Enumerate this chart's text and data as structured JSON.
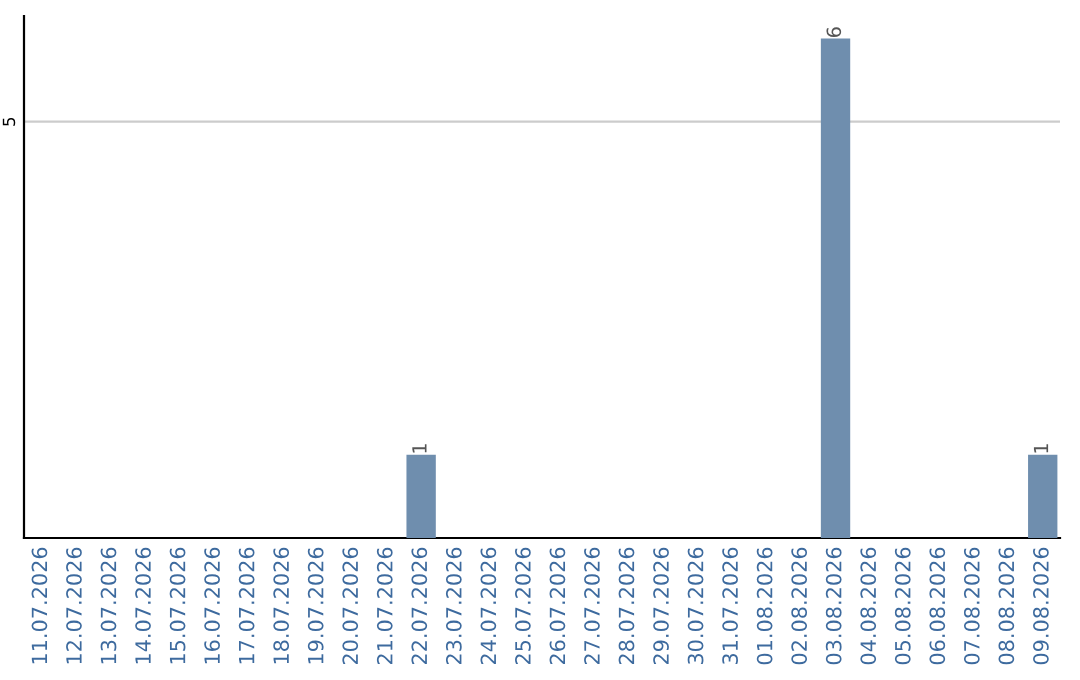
{
  "chart_data": {
    "type": "bar",
    "categories": [
      "11.07.2026",
      "12.07.2026",
      "13.07.2026",
      "14.07.2026",
      "15.07.2026",
      "16.07.2026",
      "17.07.2026",
      "18.07.2026",
      "19.07.2026",
      "20.07.2026",
      "21.07.2026",
      "22.07.2026",
      "23.07.2026",
      "24.07.2026",
      "25.07.2026",
      "26.07.2026",
      "27.07.2026",
      "28.07.2026",
      "29.07.2026",
      "30.07.2026",
      "31.07.2026",
      "01.08.2026",
      "02.08.2026",
      "03.08.2026",
      "04.08.2026",
      "05.08.2026",
      "06.08.2026",
      "07.08.2026",
      "08.08.2026",
      "09.08.2026"
    ],
    "values": [
      0,
      0,
      0,
      0,
      0,
      0,
      0,
      0,
      0,
      0,
      0,
      1,
      0,
      0,
      0,
      0,
      0,
      0,
      0,
      0,
      0,
      0,
      0,
      6,
      0,
      0,
      0,
      0,
      0,
      1
    ],
    "value_labels": [
      null,
      null,
      null,
      null,
      null,
      null,
      null,
      null,
      null,
      null,
      null,
      "1",
      null,
      null,
      null,
      null,
      null,
      null,
      null,
      null,
      null,
      null,
      null,
      "6",
      null,
      null,
      null,
      null,
      null,
      "1"
    ],
    "color": "#6f8eae",
    "ylim": [
      0,
      6.27
    ],
    "yticks": [
      5
    ],
    "grid": "y"
  }
}
